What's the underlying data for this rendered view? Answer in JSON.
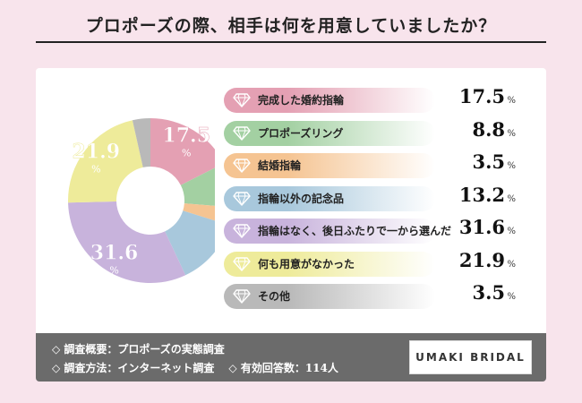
{
  "title": "プロポーズの際、相手は何を用意していましたか？",
  "footer": {
    "overview": "◇ 調査概要：プロポーズの実態調査",
    "method": "◇ 調査方法：インターネット調査",
    "respondents": "◇ 有効回答数：114人",
    "brand": "UMAKI BRIDAL"
  },
  "percent_sign": "%",
  "chart_data": {
    "type": "pie",
    "donut": true,
    "unit": "%",
    "categories": [
      "完成した婚約指輪",
      "プロポーズリング",
      "結婚指輪",
      "指輪以外の記念品",
      "指輪はなく、後日ふたりで一から選んだ",
      "何も用意がなかった",
      "その他"
    ],
    "values": [
      17.5,
      8.8,
      3.5,
      13.2,
      31.6,
      21.9,
      3.5
    ],
    "value_labels": [
      "17.5",
      "8.8",
      "3.5",
      "13.2",
      "31.6",
      "21.9",
      "3.5"
    ],
    "colors": [
      "#e4a0b3",
      "#a3d0a2",
      "#f5c492",
      "#a8c8dc",
      "#c8b3dc",
      "#eeeb9a",
      "#b9b9b9"
    ],
    "slice_labels_shown": [
      0,
      4,
      5
    ]
  }
}
